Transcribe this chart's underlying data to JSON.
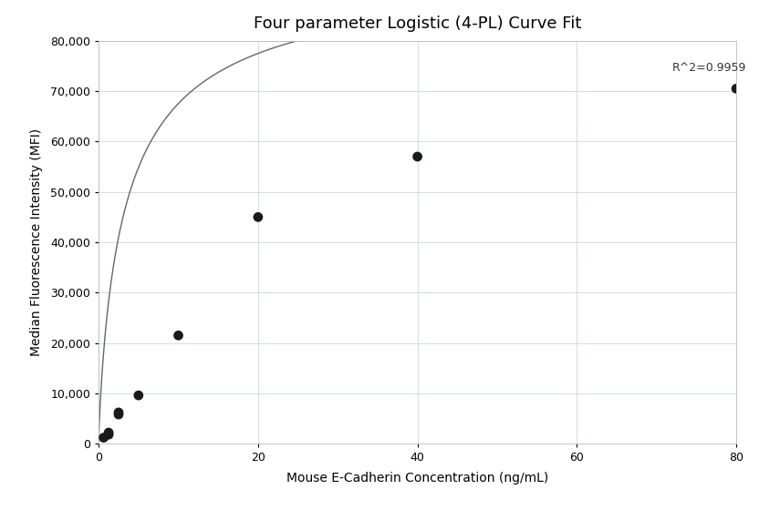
{
  "title": "Four parameter Logistic (4-PL) Curve Fit",
  "xlabel": "Mouse E-Cadherin Concentration (ng/mL)",
  "ylabel": "Median Fluorescence Intensity (MFI)",
  "scatter_x": [
    0.625,
    1.25,
    1.25,
    2.5,
    2.5,
    5.0,
    10.0,
    20.0,
    40.0,
    80.0
  ],
  "scatter_y": [
    1200,
    1800,
    2200,
    5800,
    6200,
    9600,
    21500,
    45000,
    57000,
    70500
  ],
  "r_squared": "R^2=0.9959",
  "xlim": [
    0,
    80
  ],
  "ylim": [
    0,
    80000
  ],
  "yticks": [
    0,
    10000,
    20000,
    30000,
    40000,
    50000,
    60000,
    70000,
    80000
  ],
  "xticks": [
    0,
    20,
    40,
    60,
    80
  ],
  "curve_color": "#666666",
  "scatter_color": "#1a1a1a",
  "grid_color": "#cddcec",
  "bg_color": "#ffffff",
  "title_fontsize": 13,
  "label_fontsize": 10,
  "tick_fontsize": 9,
  "annotation_fontsize": 9,
  "4pl_A": 500,
  "4pl_B": 0.85,
  "4pl_C": 3.5,
  "4pl_D": 95000
}
